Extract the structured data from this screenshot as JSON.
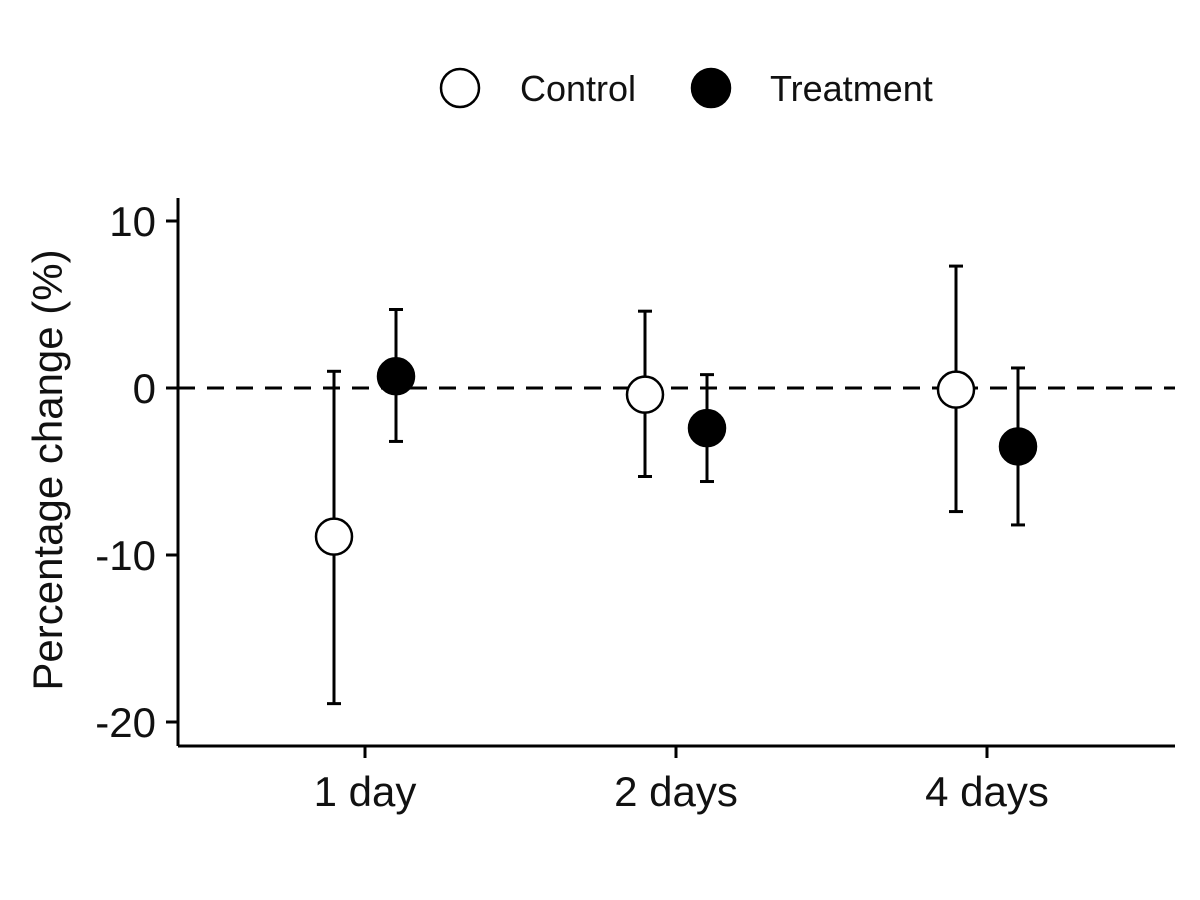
{
  "chart_data": {
    "type": "scatter",
    "title": "",
    "xlabel": "",
    "ylabel": "Percentage change (%)",
    "categories": [
      "1 day",
      "2 days",
      "4 days"
    ],
    "yticks": [
      "10",
      "0",
      "-10",
      "-20"
    ],
    "ylim": [
      -21.3,
      9.9
    ],
    "grid": false,
    "legend": {
      "position": "top",
      "entries": [
        "Control",
        "Treatment"
      ]
    },
    "reference_line": {
      "y": 0,
      "style": "dashed"
    },
    "series": [
      {
        "name": "Control",
        "marker": "open-circle",
        "values": [
          -8.9,
          -0.4,
          -0.1
        ],
        "lower": [
          -18.9,
          -5.3,
          -7.4
        ],
        "upper": [
          1.0,
          4.6,
          7.3
        ]
      },
      {
        "name": "Treatment",
        "marker": "filled-circle",
        "values": [
          0.7,
          -2.4,
          -3.5
        ],
        "lower": [
          -3.2,
          -5.6,
          -8.2
        ],
        "upper": [
          4.7,
          0.8,
          1.2
        ]
      }
    ],
    "colors": {
      "ink": "#000000",
      "open_fill": "#ffffff",
      "filled": "#000000"
    }
  }
}
